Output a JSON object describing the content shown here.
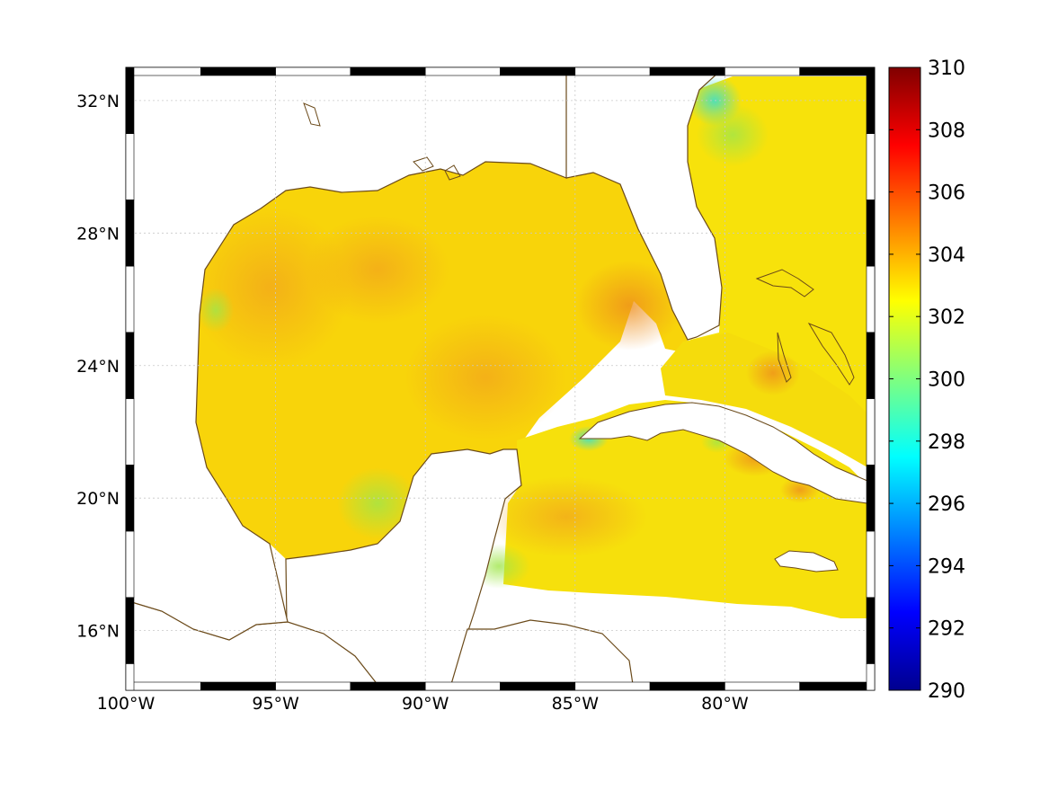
{
  "map": {
    "lon_ticks": [
      {
        "value": -100,
        "label": "100°W"
      },
      {
        "value": -95,
        "label": "95°W"
      },
      {
        "value": -90,
        "label": "90°W"
      },
      {
        "value": -85,
        "label": "85°W"
      },
      {
        "value": -80,
        "label": "80°W"
      }
    ],
    "lat_ticks": [
      {
        "value": 32,
        "label": "32°N"
      },
      {
        "value": 28,
        "label": "28°N"
      },
      {
        "value": 24,
        "label": "24°N"
      },
      {
        "value": 20,
        "label": "20°N"
      },
      {
        "value": 16,
        "label": "16°N"
      }
    ],
    "lon_range": [
      -100,
      -75
    ],
    "lat_range": [
      14.2,
      33
    ],
    "grid": true,
    "land_color": "#ffffff",
    "coast_color": "#6b4a1a"
  },
  "colorbar": {
    "ticks": [
      "310",
      "308",
      "306",
      "304",
      "302",
      "300",
      "298",
      "296",
      "294",
      "292",
      "290"
    ],
    "range": [
      290,
      310
    ],
    "colormap": "jet",
    "position": "right"
  }
}
